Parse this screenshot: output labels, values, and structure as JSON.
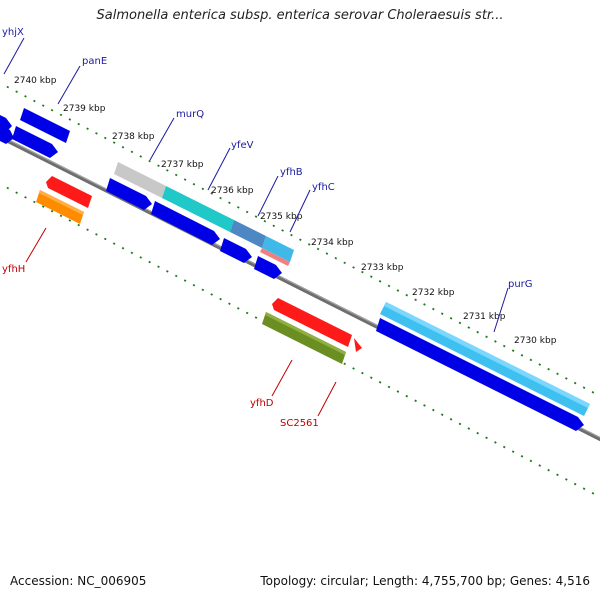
{
  "header": {
    "title": "Salmonella enterica subsp. enterica serovar Choleraesuis str..."
  },
  "footer": {
    "accession": "Accession: NC_006905",
    "stats": "Topology: circular; Length: 4,755,700 bp; Genes: 4,516"
  },
  "colors": {
    "backbone": "#808080",
    "ticks": "#1f7a1f",
    "forward_label": "#1a1aa0",
    "reverse_label": "#c00000"
  },
  "kbp_labels": [
    "2740 kbp",
    "2739 kbp",
    "2738 kbp",
    "2737 kbp",
    "2736 kbp",
    "2735 kbp",
    "2734 kbp",
    "2733 kbp",
    "2732 kbp",
    "2731 kbp",
    "2730 kbp"
  ],
  "genes_forward": [
    "yhjX",
    "panE",
    "murQ",
    "yfeV",
    "yfhB",
    "yfhC",
    "purG"
  ],
  "genes_reverse": [
    "yfhH",
    "yfhD",
    "SC2561"
  ]
}
